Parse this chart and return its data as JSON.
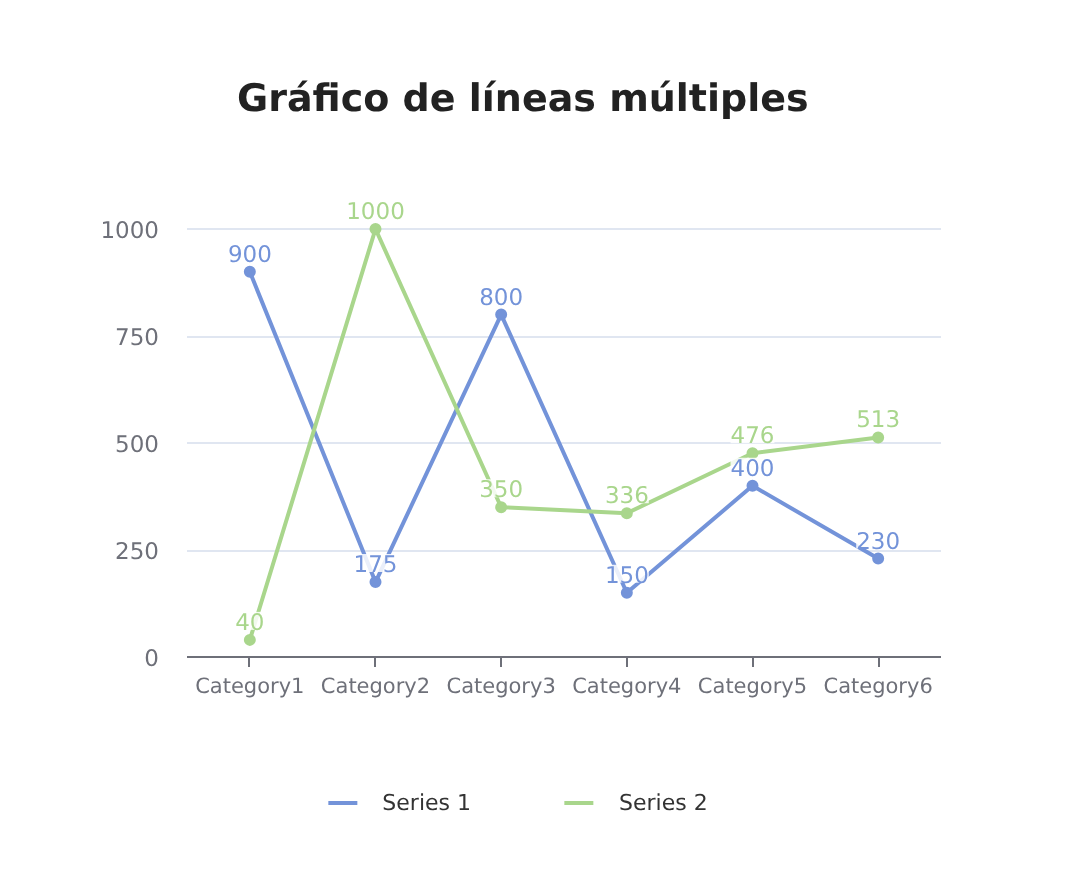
{
  "chart_data": {
    "type": "line",
    "title": "Gráfico de líneas múltiples",
    "categories": [
      "Category1",
      "Category2",
      "Category3",
      "Category4",
      "Category5",
      "Category6"
    ],
    "series": [
      {
        "name": "Series 1",
        "color": "#7393d9",
        "values": [
          900,
          175,
          800,
          150,
          400,
          230
        ]
      },
      {
        "name": "Series 2",
        "color": "#a9d68c",
        "values": [
          40,
          1000,
          350,
          336,
          476,
          513
        ]
      }
    ],
    "ylim": [
      0,
      1000
    ],
    "yticks": [
      0,
      250,
      500,
      750,
      1000
    ],
    "grid": "y",
    "legend": "bottom",
    "marker": "circle",
    "line_style": "solid",
    "data_labels": true
  }
}
